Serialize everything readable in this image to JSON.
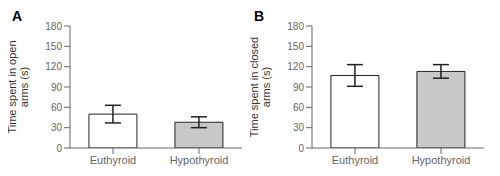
{
  "chart_data": [
    {
      "type": "bar",
      "title": "A",
      "categories": [
        "Euthyroid",
        "Hypothyroid"
      ],
      "values": [
        50,
        38
      ],
      "errors_upper": [
        13,
        8
      ],
      "errors_lower": [
        13,
        8
      ],
      "colors": [
        "white",
        "#c8c8c8"
      ],
      "ylabel": "Time spent in open\narms (s)",
      "ylim": [
        0,
        180
      ],
      "yticks": [
        0,
        30,
        60,
        90,
        120,
        150,
        180
      ],
      "grid": false
    },
    {
      "type": "bar",
      "title": "B",
      "categories": [
        "Euthyroid",
        "Hypothyroid"
      ],
      "values": [
        107,
        113
      ],
      "errors_upper": [
        16,
        10
      ],
      "errors_lower": [
        16,
        10
      ],
      "colors": [
        "white",
        "#c8c8c8"
      ],
      "ylabel": "Time spent in closed\narms (s)",
      "ylim": [
        0,
        180
      ],
      "yticks": [
        0,
        30,
        60,
        90,
        120,
        150,
        180
      ],
      "grid": false
    }
  ]
}
